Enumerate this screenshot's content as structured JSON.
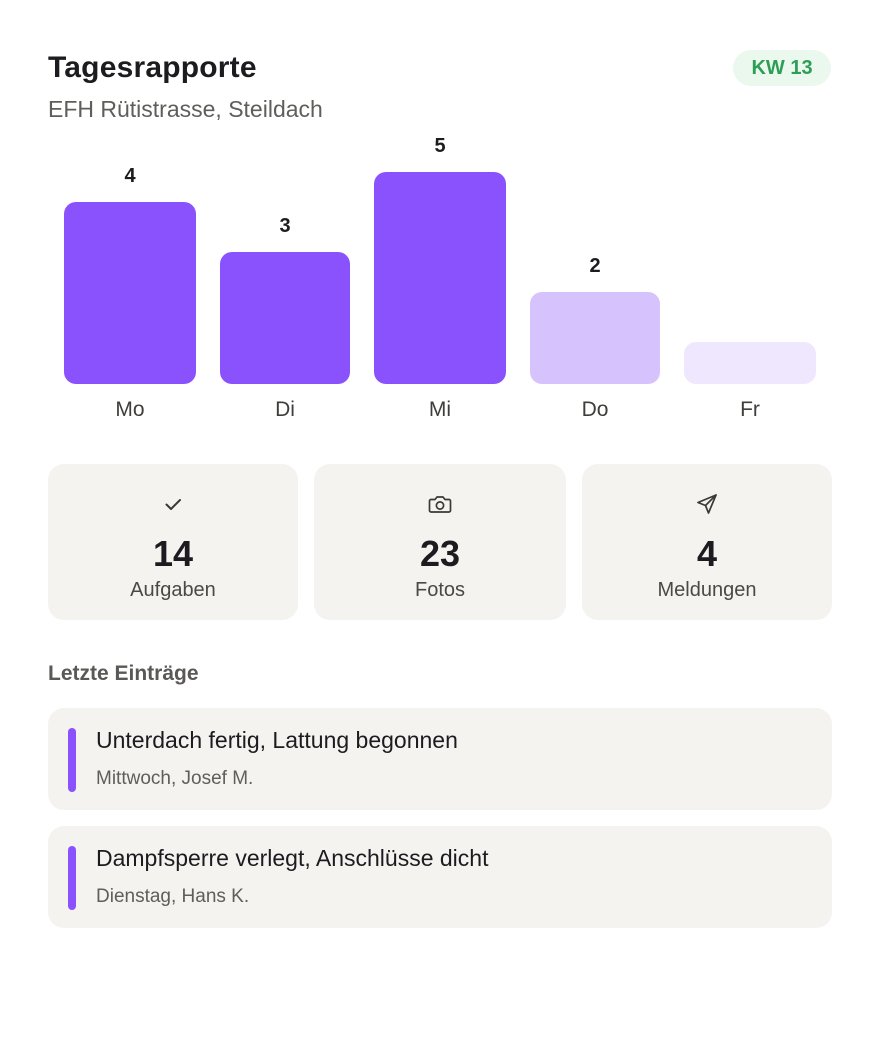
{
  "header": {
    "title": "Tagesrapporte",
    "subtitle": "EFH Rütistrasse, Steildach",
    "week_badge": "KW 13"
  },
  "chart_data": {
    "type": "bar",
    "title": "",
    "xlabel": "",
    "ylabel": "",
    "categories": [
      "Mo",
      "Di",
      "Mi",
      "Do",
      "Fr"
    ],
    "values": [
      4,
      3,
      5,
      2,
      1
    ],
    "value_labels": [
      "4",
      "3",
      "5",
      "2",
      ""
    ],
    "bar_colors": [
      "#8a52fd",
      "#8a52fd",
      "#8a52fd",
      "#d6c2fd",
      "#efe7fe"
    ],
    "ylim": [
      0,
      5
    ],
    "grid": false,
    "legend": "none"
  },
  "stats": [
    {
      "icon": "check-icon",
      "value": "14",
      "label": "Aufgaben"
    },
    {
      "icon": "camera-icon",
      "value": "23",
      "label": "Fotos"
    },
    {
      "icon": "send-icon",
      "value": "4",
      "label": "Meldungen"
    }
  ],
  "recent": {
    "heading": "Letzte Einträge",
    "entries": [
      {
        "title": "Unterdach fertig, Lattung begonnen",
        "meta": "Mittwoch, Josef M."
      },
      {
        "title": "Dampfsperre verlegt, Anschlüsse dicht",
        "meta": "Dienstag, Hans K."
      }
    ]
  },
  "colors": {
    "accent": "#8a52fd",
    "badge_text": "#2f9e55",
    "badge_bg": "#eaf8ee",
    "tile_bg": "#f4f3f0"
  }
}
